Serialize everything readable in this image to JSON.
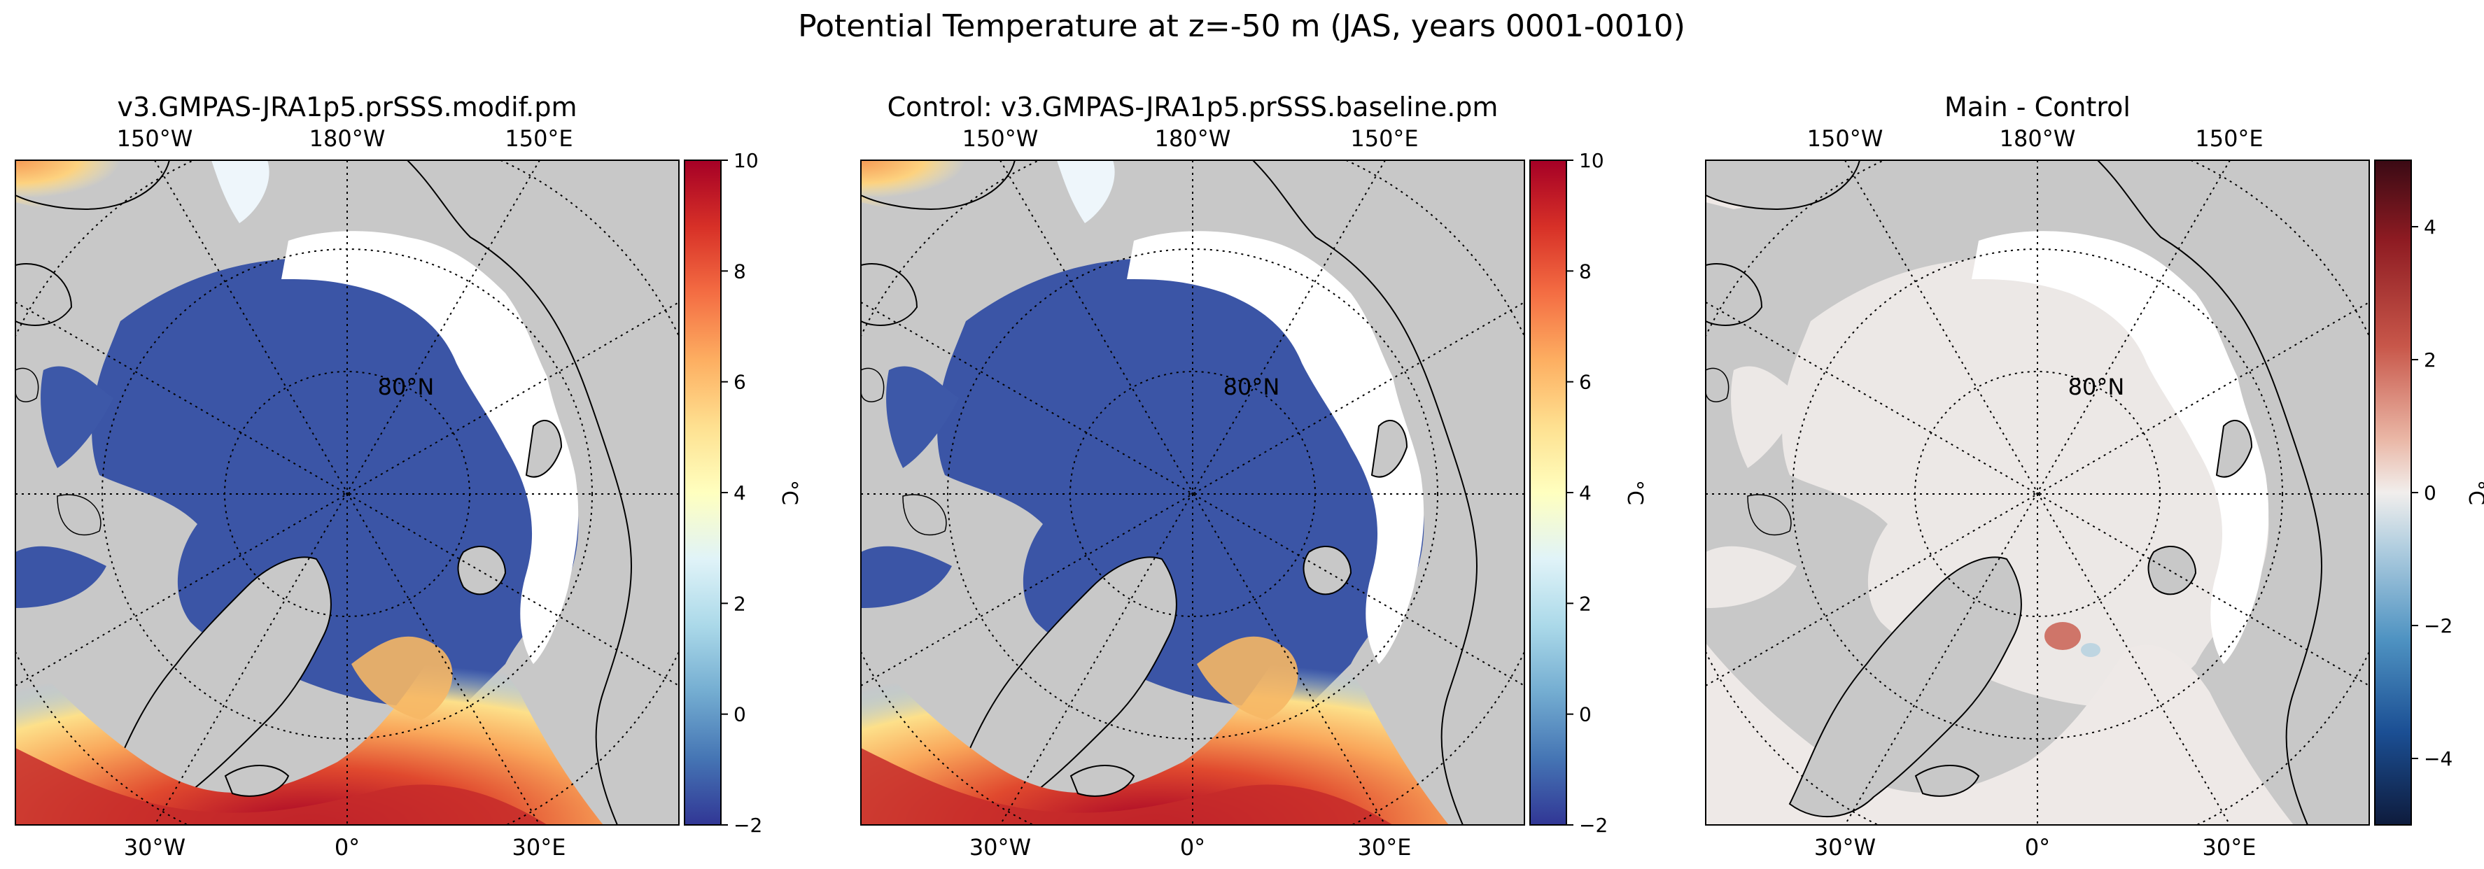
{
  "suptitle": "Potential Temperature at z=-50 m (JAS, years 0001-0010)",
  "colors": {
    "land": "#c8c8c8",
    "seaice": "#ffffff",
    "ocean_cold": "#3b55a6",
    "ocean_warm": "#d23a2a",
    "diff_neutral": "#ece8e6",
    "coast": "#000000"
  },
  "chart_data": [
    {
      "type": "heatmap",
      "title": "v3.GMPAS-JRA1p5.prSSS.modif.pm",
      "projection": "north-polar-stereographic",
      "top_ticks": [
        "150°W",
        "180°W",
        "150°E"
      ],
      "bottom_ticks": [
        "30°W",
        "0°",
        "30°E"
      ],
      "lat_label": "80°N",
      "colorbar": {
        "label": "°C",
        "vmin": -2,
        "vmax": 10,
        "ticks": [
          "10",
          "8",
          "6",
          "4",
          "2",
          "0",
          "−2"
        ],
        "cmap": "RdYlBu_r"
      }
    },
    {
      "type": "heatmap",
      "title": "Control: v3.GMPAS-JRA1p5.prSSS.baseline.pm",
      "projection": "north-polar-stereographic",
      "top_ticks": [
        "150°W",
        "180°W",
        "150°E"
      ],
      "bottom_ticks": [
        "30°W",
        "0°",
        "30°E"
      ],
      "lat_label": "80°N",
      "colorbar": {
        "label": "°C",
        "vmin": -2,
        "vmax": 10,
        "ticks": [
          "10",
          "8",
          "6",
          "4",
          "2",
          "0",
          "−2"
        ],
        "cmap": "RdYlBu_r"
      }
    },
    {
      "type": "heatmap",
      "title": "Main - Control",
      "projection": "north-polar-stereographic",
      "top_ticks": [
        "150°W",
        "180°W",
        "150°E"
      ],
      "bottom_ticks": [
        "30°W",
        "0°",
        "30°E"
      ],
      "lat_label": "80°N",
      "colorbar": {
        "label": "°C",
        "vmin": -5,
        "vmax": 5,
        "ticks": [
          "4",
          "2",
          "0",
          "−2",
          "−4"
        ],
        "cmap": "RdBu_r"
      }
    }
  ]
}
